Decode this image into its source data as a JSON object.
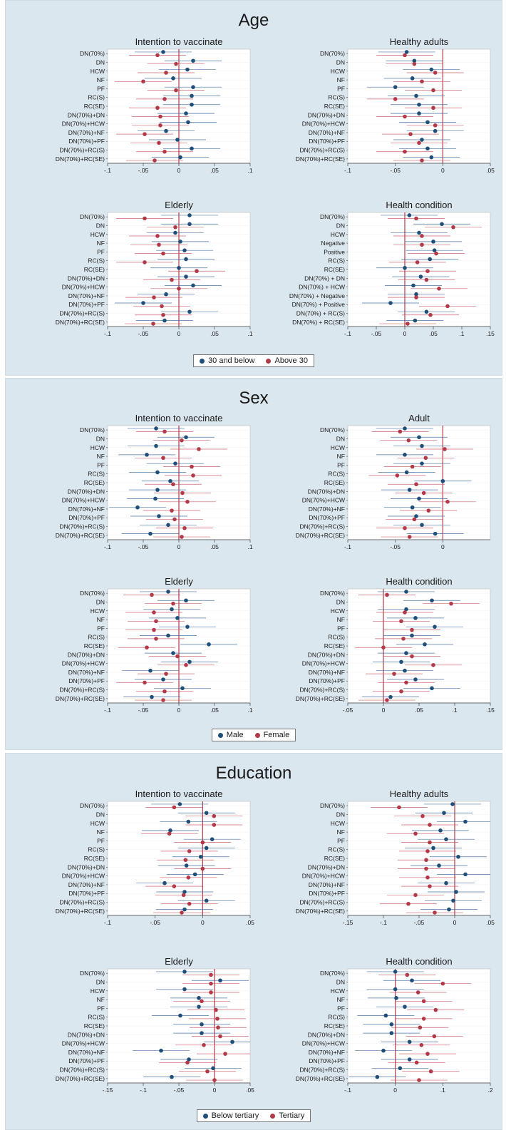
{
  "colors": {
    "series_a": "#1f4e79",
    "series_b": "#b23a48",
    "ref_line": "#b23a48",
    "ci_a": "#2f5f9a",
    "ci_b": "#c44e5d"
  },
  "sections": [
    {
      "title": "Age",
      "legend": [
        "30 and below",
        "Above 30"
      ]
    },
    {
      "title": "Sex",
      "legend": [
        "Male",
        "Female"
      ]
    },
    {
      "title": "Education",
      "legend": [
        "Below tertiary",
        "Tertiary"
      ]
    }
  ],
  "chart_data": [
    {
      "type": "scatter",
      "section": "Age",
      "title": "Intention to vaccinate",
      "categories": [
        "DN(70%)",
        "DN",
        "HCW",
        "NF",
        "PF",
        "RC(S)",
        "RC(SE)",
        "DN(70%)+DN",
        "DN(70%)+HCW",
        "DN(70%)+NF",
        "DN(70%)+PF",
        "DN(70%)+RC(S)",
        "DN(70%)+RC(SE)"
      ],
      "xticks": [
        "-.1",
        "-.05",
        "0",
        ".05",
        ".1"
      ],
      "xlim": [
        -0.1,
        0.1
      ],
      "series": [
        {
          "name": "30 and below",
          "values": [
            -0.022,
            0.02,
            0.012,
            -0.008,
            0.02,
            0.018,
            0.018,
            0.01,
            0.013,
            -0.018,
            -0.002,
            0.018,
            0.002
          ]
        },
        {
          "name": "Above 30",
          "values": [
            -0.03,
            -0.004,
            -0.018,
            -0.05,
            -0.004,
            -0.02,
            -0.03,
            -0.026,
            -0.026,
            -0.048,
            -0.028,
            -0.02,
            -0.034
          ]
        }
      ]
    },
    {
      "type": "scatter",
      "section": "Age",
      "title": "Healthy adults",
      "categories": [
        "DN(70%)",
        "DN",
        "HCW",
        "NF",
        "PF",
        "RC(S)",
        "RC(SE)",
        "DN(70%)+DN",
        "DN(70%)+HCW",
        "DN(70%)+NF",
        "DN(70%)+PF",
        "DN(70%)+RC(S)",
        "DN(70%)+RC(SE)"
      ],
      "xticks": [
        "-.1",
        "-.05",
        "0",
        ".05"
      ],
      "xlim": [
        -0.1,
        0.05
      ],
      "series": [
        {
          "name": "30 and below",
          "values": [
            -0.038,
            -0.03,
            -0.012,
            -0.032,
            -0.05,
            -0.028,
            -0.025,
            -0.025,
            -0.016,
            -0.008,
            -0.022,
            -0.016,
            -0.012
          ]
        },
        {
          "name": "Above 30",
          "values": [
            -0.04,
            -0.03,
            -0.008,
            -0.022,
            -0.01,
            -0.05,
            -0.01,
            -0.04,
            -0.008,
            -0.034,
            -0.025,
            -0.04,
            -0.022
          ]
        }
      ]
    },
    {
      "type": "scatter",
      "section": "Age",
      "title": "Elderly",
      "categories": [
        "DN(70%)",
        "DN",
        "HCW",
        "NF",
        "PF",
        "RC(S)",
        "RC(SE)",
        "DN(70%)+DN",
        "DN(70%)+HCW",
        "DN(70%)+NF",
        "DN(70%)+PF",
        "DN(70%)+RC(S)",
        "DN(70%)+RC(SE)"
      ],
      "xticks": [
        "-.1",
        "-.05",
        "0",
        ".05",
        ".1"
      ],
      "xlim": [
        -0.1,
        0.1
      ],
      "series": [
        {
          "name": "30 and below",
          "values": [
            0.015,
            0.015,
            -0.005,
            0.002,
            0.008,
            0.01,
            0.0,
            0.01,
            0.02,
            -0.018,
            -0.05,
            0.015,
            -0.02
          ]
        },
        {
          "name": "Above 30",
          "values": [
            -0.048,
            -0.005,
            -0.03,
            -0.028,
            -0.022,
            -0.048,
            0.025,
            -0.01,
            0.0,
            -0.035,
            -0.024,
            -0.022,
            -0.036
          ]
        }
      ]
    },
    {
      "type": "scatter",
      "section": "Age",
      "title": "Health condition",
      "categories": [
        "DN(70%)",
        "DN",
        "HCW",
        "Negative",
        "Positive",
        "RC(S)",
        "RC(SE)",
        "DN(70%) + DN",
        "DN(70%) + HCW",
        "DN(70%) + Negative",
        "DN(70%) + Positive",
        "DN(70%) + RC(S)",
        "DN(70%) + RC(SE)"
      ],
      "xticks": [
        "-.1",
        "-.05",
        "0",
        ".05",
        ".1",
        ".15"
      ],
      "xlim": [
        -0.1,
        0.15
      ],
      "series": [
        {
          "name": "30 and below",
          "values": [
            0.008,
            0.065,
            0.025,
            0.05,
            0.052,
            0.044,
            0.0,
            0.028,
            0.015,
            0.02,
            -0.025,
            0.038,
            0.018
          ]
        },
        {
          "name": "Above 30",
          "values": [
            0.02,
            0.085,
            0.03,
            0.03,
            0.055,
            0.022,
            0.04,
            0.038,
            0.06,
            0.02,
            0.075,
            0.045,
            0.005
          ]
        }
      ]
    },
    {
      "type": "scatter",
      "section": "Sex",
      "title": "Intention to vaccinate",
      "categories": [
        "DN(70%)",
        "DN",
        "HCW",
        "NF",
        "PF",
        "RC(S)",
        "RC(SE)",
        "DN(70%)+DN",
        "DN(70%)+HCW",
        "DN(70%)+NF",
        "DN(70%)+PF",
        "DN(70%)+RC(S)",
        "DN(70%)+RC(SE)"
      ],
      "xticks": [
        "-.1",
        "-.05",
        "0",
        ".05",
        ".1"
      ],
      "xlim": [
        -0.1,
        0.1
      ],
      "series": [
        {
          "name": "Male",
          "values": [
            -0.032,
            0.01,
            -0.032,
            -0.045,
            -0.005,
            -0.03,
            -0.012,
            -0.03,
            -0.033,
            -0.058,
            -0.028,
            -0.015,
            -0.04
          ]
        },
        {
          "name": "Female",
          "values": [
            -0.02,
            0.004,
            0.028,
            -0.022,
            0.018,
            0.02,
            -0.008,
            0.005,
            0.012,
            -0.01,
            -0.006,
            0.008,
            0.004
          ]
        }
      ]
    },
    {
      "type": "scatter",
      "section": "Sex",
      "title": "Adult",
      "categories": [
        "DN(70%)",
        "DN",
        "HCW",
        "NF",
        "PF",
        "RC(S)",
        "RC(SE)",
        "DN(70%)+DN",
        "DN(70%)+HCW",
        "DN(70%)+NF",
        "DN(70%)+PF",
        "DN(70%)+RC(S)",
        "DN(70%)+RC(SE)"
      ],
      "xticks": [
        "-.1",
        "-.05",
        "0"
      ],
      "xlim": [
        -0.1,
        0.05
      ],
      "series": [
        {
          "name": "Male",
          "values": [
            -0.04,
            -0.025,
            -0.022,
            -0.04,
            -0.022,
            -0.038,
            0.0,
            -0.035,
            -0.025,
            -0.032,
            -0.028,
            -0.022,
            -0.008
          ]
        },
        {
          "name": "Female",
          "values": [
            -0.045,
            -0.036,
            0.002,
            -0.018,
            -0.032,
            -0.048,
            -0.028,
            -0.02,
            0.005,
            -0.015,
            -0.03,
            -0.04,
            -0.035
          ]
        }
      ]
    },
    {
      "type": "scatter",
      "section": "Sex",
      "title": "Elderly",
      "categories": [
        "DN(70%)",
        "DN",
        "HCW",
        "NF",
        "PF",
        "RC(S)",
        "RC(SE)",
        "DN(70%)+DN",
        "DN(70%)+HCW",
        "DN(70%)+NF",
        "DN(70%)+PF",
        "DN(70%)+RC(S)",
        "DN(70%)+RC(SE)"
      ],
      "xticks": [
        "-.1",
        "-.05",
        "0",
        ".05",
        ".1"
      ],
      "xlim": [
        -0.1,
        0.1
      ],
      "series": [
        {
          "name": "Male",
          "values": [
            -0.015,
            0.01,
            -0.01,
            -0.002,
            0.012,
            -0.015,
            0.042,
            -0.008,
            0.015,
            -0.04,
            -0.022,
            0.005,
            -0.038
          ]
        },
        {
          "name": "Female",
          "values": [
            -0.038,
            -0.008,
            -0.035,
            -0.032,
            -0.035,
            -0.032,
            -0.045,
            -0.002,
            0.01,
            -0.018,
            -0.048,
            -0.02,
            -0.022
          ]
        }
      ]
    },
    {
      "type": "scatter",
      "section": "Sex",
      "title": "Health condition",
      "categories": [
        "DN(70%)",
        "DN",
        "HCW",
        "NF",
        "PF",
        "RC(S)",
        "RC(SE)",
        "DN(70%)+DN",
        "DN(70%)+HCW",
        "DN(70%)+NF",
        "DN(70%)+PF",
        "DN(70%)+RC(S)",
        "DN(70%)+RC(SE)"
      ],
      "xticks": [
        "-.05",
        "0",
        ".05",
        ".1",
        ".15"
      ],
      "xlim": [
        -0.05,
        0.15
      ],
      "series": [
        {
          "name": "Male",
          "values": [
            0.032,
            0.068,
            0.032,
            0.045,
            0.072,
            0.04,
            0.058,
            0.032,
            0.025,
            0.03,
            0.045,
            0.068,
            0.01
          ]
        },
        {
          "name": "Female",
          "values": [
            0.005,
            0.095,
            0.03,
            0.025,
            0.04,
            0.028,
            0.0,
            0.04,
            0.07,
            0.015,
            0.032,
            0.025,
            0.005
          ]
        }
      ]
    },
    {
      "type": "scatter",
      "section": "Education",
      "title": "Intention to vaccinate",
      "categories": [
        "DN(70%)",
        "DN",
        "HCW",
        "NF",
        "PF",
        "RC(S)",
        "RC(SE)",
        "DN(70%)+DN",
        "DN(70%)+HCW",
        "DN(70%)+NF",
        "DN(70%)+PF",
        "DN(70%)+RC(S)",
        "DN(70%)+RC(SE)"
      ],
      "xticks": [
        "-.1",
        "-.05",
        "0",
        ".05"
      ],
      "xlim": [
        -0.1,
        0.05
      ],
      "series": [
        {
          "name": "Below tertiary",
          "values": [
            -0.024,
            0.004,
            -0.015,
            -0.034,
            0.01,
            0.004,
            -0.002,
            -0.017,
            -0.008,
            -0.04,
            -0.019,
            0.004,
            -0.019
          ]
        },
        {
          "name": "Tertiary",
          "values": [
            -0.03,
            0.012,
            0.012,
            -0.035,
            0.0,
            -0.014,
            -0.018,
            0.0,
            -0.015,
            -0.03,
            -0.02,
            -0.014,
            -0.022
          ]
        }
      ]
    },
    {
      "type": "scatter",
      "section": "Education",
      "title": "Healthy adults",
      "categories": [
        "DN(70%)",
        "DN",
        "HCW",
        "NF",
        "PF",
        "RC(S)",
        "RC(SE)",
        "DN(70%)+DN",
        "DN(70%)+HCW",
        "DN(70%)+NF",
        "DN(70%)+PF",
        "DN(70%)+RC(S)",
        "DN(70%)+RC(SE)"
      ],
      "xticks": [
        "-.15",
        "-.1",
        "-.05",
        "0",
        ".05"
      ],
      "xlim": [
        -0.15,
        0.05
      ],
      "series": [
        {
          "name": "Below tertiary",
          "values": [
            -0.003,
            -0.015,
            0.015,
            -0.02,
            -0.012,
            -0.03,
            0.005,
            -0.022,
            0.015,
            -0.012,
            0.002,
            -0.002,
            -0.008
          ]
        },
        {
          "name": "Tertiary",
          "values": [
            -0.078,
            -0.045,
            -0.035,
            -0.055,
            -0.035,
            -0.038,
            -0.04,
            -0.04,
            -0.038,
            -0.035,
            -0.055,
            -0.065,
            -0.028
          ]
        }
      ]
    },
    {
      "type": "scatter",
      "section": "Education",
      "title": "Elderly",
      "categories": [
        "DN(70%)",
        "DN",
        "HCW",
        "NF",
        "PF",
        "RC(S)",
        "RC(SE)",
        "DN(70%)+DN",
        "DN(70%)+HCW",
        "DN(70%)+NF",
        "DN(70%)+PF",
        "DN(70%)+RC(S)",
        "DN(70%)+RC(SE)"
      ],
      "xticks": [
        "-.15",
        "-.1",
        "-.05",
        "0",
        ".05"
      ],
      "xlim": [
        -0.15,
        0.05
      ],
      "series": [
        {
          "name": "Below tertiary",
          "values": [
            -0.042,
            0.008,
            -0.042,
            -0.022,
            -0.022,
            -0.048,
            -0.018,
            -0.018,
            0.025,
            -0.075,
            -0.036,
            -0.002,
            -0.06
          ]
        },
        {
          "name": "Tertiary",
          "values": [
            -0.005,
            -0.005,
            -0.005,
            -0.018,
            0.002,
            0.004,
            0.005,
            0.008,
            -0.015,
            0.015,
            -0.038,
            -0.01,
            0.0
          ]
        }
      ]
    },
    {
      "type": "scatter",
      "section": "Education",
      "title": "Health condition",
      "categories": [
        "DN(70%)",
        "DN",
        "HCW",
        "NF",
        "PF",
        "RC(S)",
        "RC(SE)",
        "DN(70%)+DN",
        "DN(70%)+HCW",
        "DN(70%)+NF",
        "DN(70%)+PF",
        "DN(70%)+RC(S)",
        "DN(70%)+RC(SE)"
      ],
      "xticks": [
        "-.1",
        "0",
        ".1",
        ".2"
      ],
      "xlim": [
        -0.1,
        0.2
      ],
      "series": [
        {
          "name": "Below tertiary",
          "values": [
            0.0,
            0.035,
            0.0,
            0.002,
            0.02,
            -0.02,
            -0.008,
            -0.008,
            0.03,
            -0.025,
            0.03,
            0.01,
            -0.038
          ]
        },
        {
          "name": "Tertiary",
          "values": [
            0.025,
            0.1,
            0.048,
            0.06,
            0.085,
            0.06,
            0.052,
            0.082,
            0.055,
            0.068,
            0.045,
            0.075,
            0.05
          ]
        }
      ]
    }
  ]
}
